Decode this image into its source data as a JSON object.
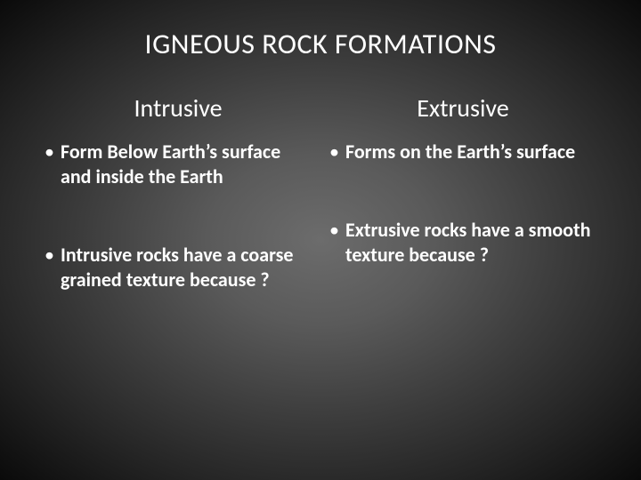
{
  "title": "IGNEOUS ROCK FORMATIONS",
  "left": {
    "heading": "Intrusive",
    "bullets": [
      "Form Below Earth’s surface and inside the Earth",
      "Intrusive rocks have a coarse grained texture because ?"
    ]
  },
  "right": {
    "heading": "Extrusive",
    "bullets": [
      "Forms on the Earth’s surface",
      "Extrusive rocks have a smooth texture because ?"
    ]
  },
  "style": {
    "background_gradient_center": "#6c6c6c",
    "background_gradient_edge": "#0a0a0a",
    "text_color": "#ffffff",
    "title_fontsize": 32,
    "heading_fontsize": 28,
    "body_fontsize": 22,
    "body_fontweight": 600,
    "font_family": "Calibri"
  }
}
